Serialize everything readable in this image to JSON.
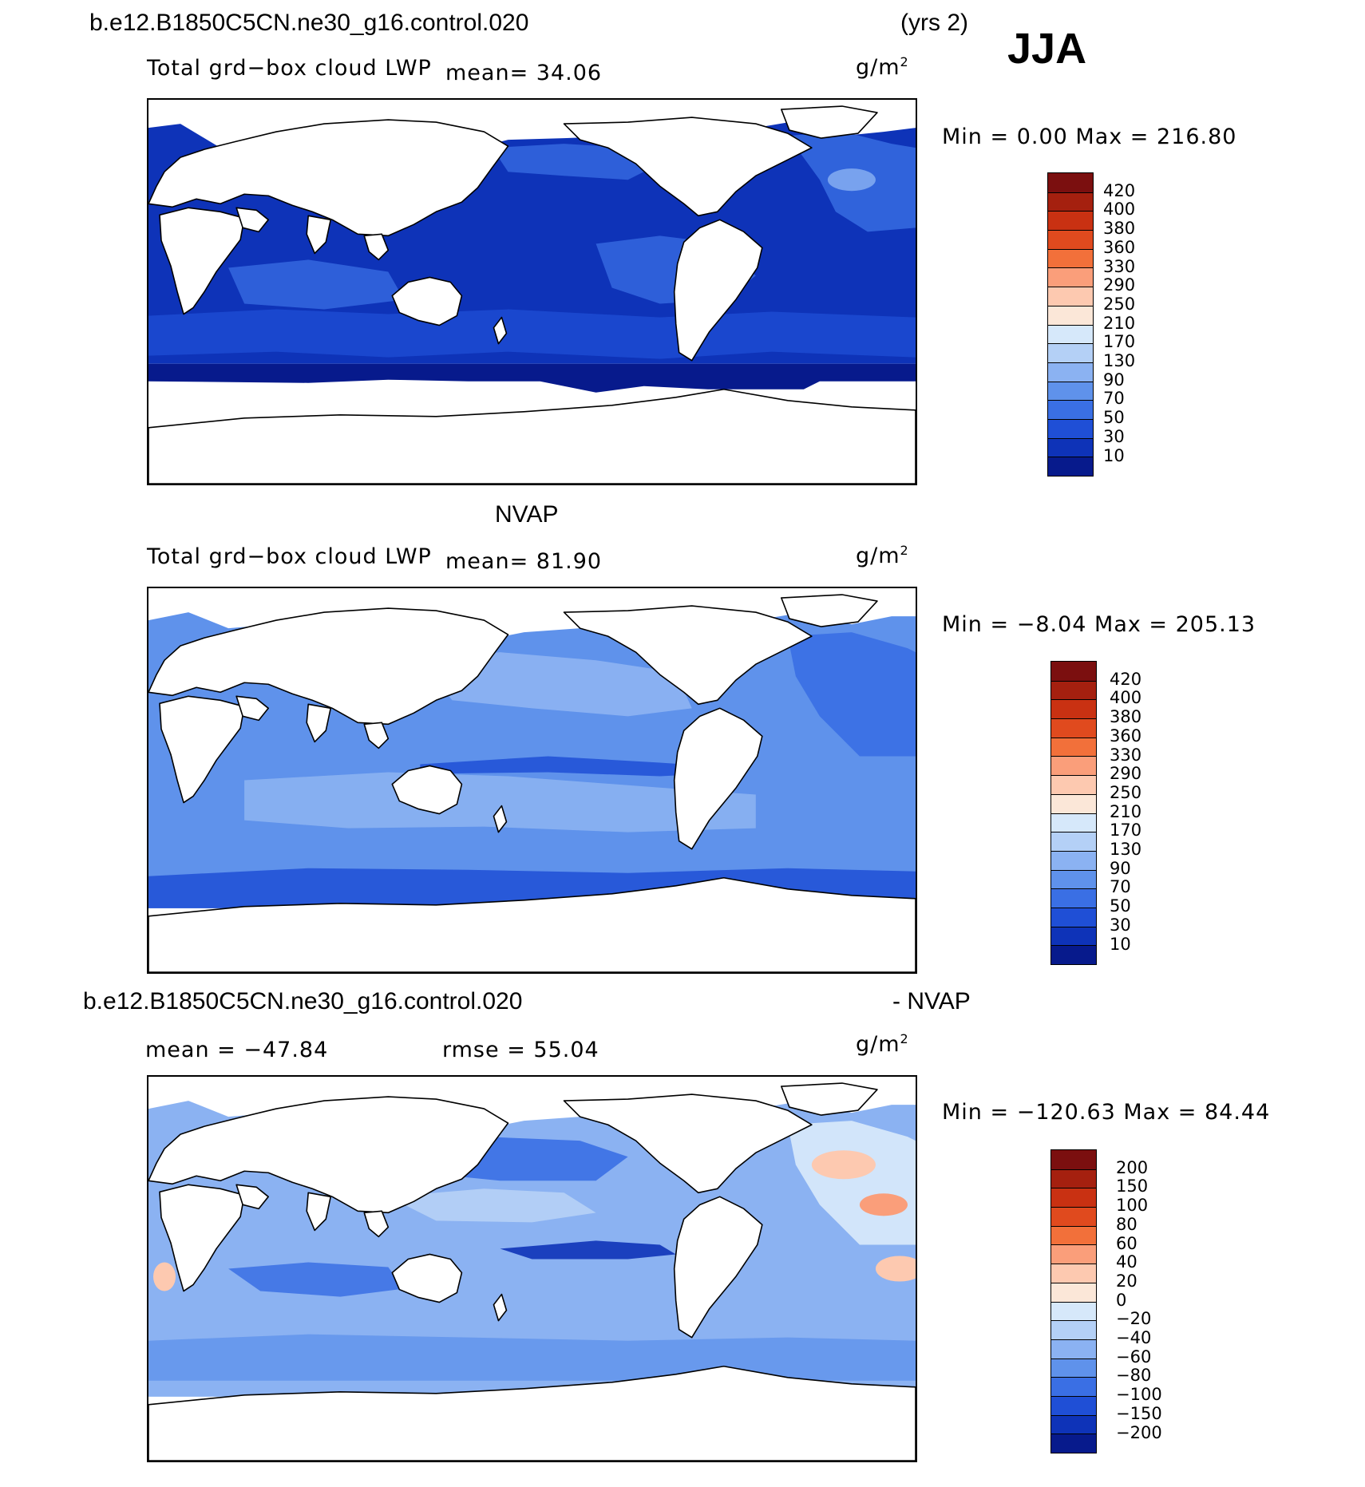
{
  "header": {
    "case_name": "b.e12.B1850C5CN.ne30_g16.control.020",
    "years": "(yrs 2)",
    "season": "JJA"
  },
  "panels": [
    {
      "id": "model",
      "variable": "Total grd−box cloud LWP",
      "mean_text": "mean=   34.06",
      "units": "g/m",
      "units_exp": "2",
      "minmax": "Min  =    0.00  Max  =  216.80",
      "colorbar_labels": [
        "420",
        "400",
        "380",
        "360",
        "330",
        "290",
        "250",
        "210",
        "170",
        "130",
        "90",
        "70",
        "50",
        "30",
        "10"
      ]
    },
    {
      "id": "obs",
      "title": "NVAP",
      "variable": "Total grd−box cloud LWP",
      "mean_text": "mean=   81.90",
      "units": "g/m",
      "units_exp": "2",
      "minmax": "Min  =   −8.04  Max  =  205.13",
      "colorbar_labels": [
        "420",
        "400",
        "380",
        "360",
        "330",
        "290",
        "250",
        "210",
        "170",
        "130",
        "90",
        "70",
        "50",
        "30",
        "10"
      ]
    },
    {
      "id": "diff",
      "title_left": "b.e12.B1850C5CN.ne30_g16.control.020",
      "title_right": "- NVAP",
      "mean_text": "mean  =  −47.84",
      "rmse_text": "rmse  =   55.04",
      "units": "g/m",
      "units_exp": "2",
      "minmax": "Min  =  −120.63  Max  =   84.44",
      "colorbar_labels": [
        "200",
        "150",
        "100",
        "80",
        "60",
        "40",
        "20",
        "0",
        "−20",
        "−40",
        "−60",
        "−80",
        "−100",
        "−150",
        "−200"
      ]
    }
  ],
  "colors": {
    "abs_scale": [
      "#7b0f0f",
      "#a5200f",
      "#c93112",
      "#e04a1e",
      "#f2703a",
      "#fa9e7a",
      "#fdc9b0",
      "#fbe7d8",
      "#d6e8fa",
      "#b4d0f6",
      "#8bb2f2",
      "#5f92eb",
      "#3a6fe4",
      "#1f4fd6",
      "#0e33b8",
      "#071a8c"
    ],
    "diff_scale": [
      "#7b0f0f",
      "#a5200f",
      "#c93112",
      "#e04a1e",
      "#f2703a",
      "#fa9e7a",
      "#fdc9b0",
      "#fbe7d8",
      "#d6e8fa",
      "#b4d0f6",
      "#8bb2f2",
      "#5f92eb",
      "#3a6fe4",
      "#1f4fd6",
      "#0e33b8",
      "#071a8c"
    ]
  }
}
